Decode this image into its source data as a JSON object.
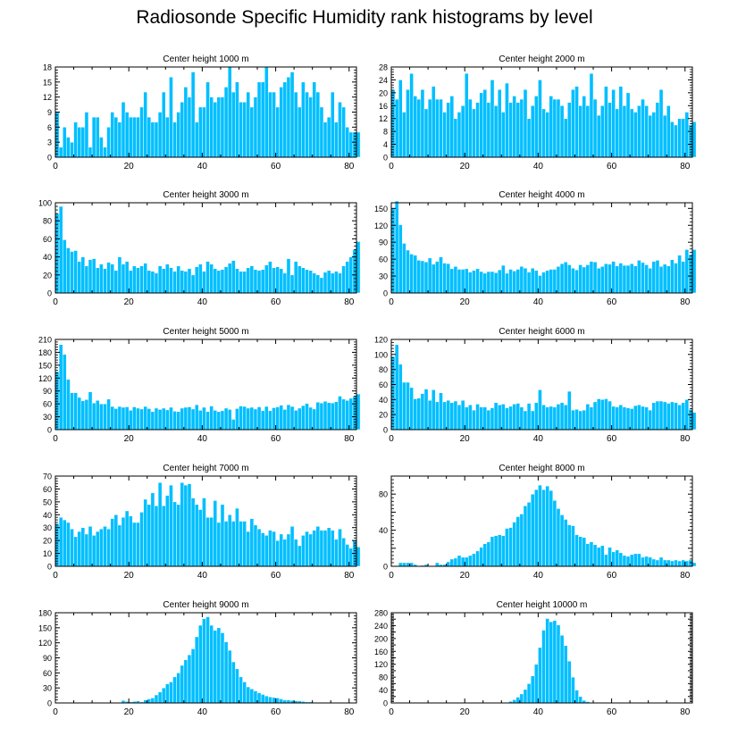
{
  "title": "Radiosonde Specific Humidity rank histograms by level",
  "colors": {
    "bar": "#00bfff",
    "bar_edge": "#ffffff",
    "axis": "#000000",
    "background": "#ffffff"
  },
  "chart_data": [
    {
      "type": "bar",
      "title": "Center height 1000 m",
      "xlabel": "",
      "ylabel": "",
      "xlim": [
        0,
        82
      ],
      "xticks": [
        0,
        20,
        40,
        60,
        80
      ],
      "ylim": [
        0,
        18
      ],
      "yticks": [
        0,
        3,
        6,
        9,
        12,
        15,
        18
      ],
      "ylabel_step": 1,
      "values": [
        9,
        2,
        6,
        4,
        3,
        7,
        6,
        6,
        9,
        2,
        8,
        8,
        4,
        2,
        6,
        9,
        8,
        7,
        11,
        9,
        8,
        8,
        8,
        10,
        13,
        8,
        7,
        7,
        9,
        13,
        8,
        16,
        7,
        9,
        11,
        14,
        12,
        17,
        7,
        10,
        10,
        15,
        12,
        11,
        12,
        12,
        14,
        18,
        13,
        15,
        11,
        11,
        13,
        10,
        12,
        15,
        15,
        18,
        13,
        13,
        10,
        14,
        15,
        16,
        17,
        13,
        10,
        15,
        13,
        12,
        15,
        13,
        10,
        7,
        8,
        13,
        7,
        11,
        10,
        6,
        5,
        5,
        5
      ]
    },
    {
      "type": "bar",
      "title": "Center height 2000 m",
      "xlabel": "",
      "ylabel": "",
      "xlim": [
        0,
        82
      ],
      "xticks": [
        0,
        20,
        40,
        60,
        80
      ],
      "ylim": [
        0,
        28
      ],
      "yticks": [
        0,
        4,
        8,
        12,
        16,
        20,
        24,
        28
      ],
      "ylabel_step": 1,
      "values": [
        21,
        18,
        24,
        14,
        21,
        26,
        19,
        18,
        21,
        15,
        18,
        22,
        18,
        18,
        14,
        17,
        19,
        12,
        14,
        16,
        26,
        18,
        15,
        17,
        20,
        21,
        17,
        24,
        16,
        21,
        14,
        23,
        17,
        19,
        17,
        18,
        21,
        12,
        16,
        19,
        24,
        15,
        14,
        19,
        18,
        18,
        16,
        12,
        17,
        21,
        22,
        16,
        19,
        16,
        26,
        18,
        13,
        16,
        22,
        17,
        21,
        15,
        22,
        16,
        20,
        15,
        14,
        16,
        18,
        16,
        13,
        14,
        17,
        21,
        13,
        16,
        11,
        10,
        12,
        12,
        14,
        10,
        11
      ]
    },
    {
      "type": "bar",
      "title": "Center height 3000 m",
      "xlabel": "",
      "ylabel": "",
      "xlim": [
        0,
        82
      ],
      "xticks": [
        0,
        20,
        40,
        60,
        80
      ],
      "ylim": [
        0,
        100
      ],
      "yticks": [
        0,
        20,
        40,
        60,
        80,
        100
      ],
      "ylabel_step": 1,
      "values": [
        88,
        96,
        59,
        50,
        46,
        47,
        35,
        40,
        30,
        37,
        38,
        28,
        32,
        27,
        34,
        32,
        25,
        40,
        32,
        35,
        25,
        30,
        28,
        30,
        33,
        25,
        24,
        22,
        30,
        27,
        32,
        28,
        24,
        30,
        25,
        24,
        27,
        20,
        29,
        32,
        24,
        35,
        32,
        27,
        25,
        26,
        29,
        33,
        36,
        27,
        24,
        24,
        28,
        30,
        26,
        25,
        26,
        31,
        35,
        28,
        29,
        27,
        22,
        38,
        20,
        35,
        30,
        28,
        26,
        25,
        22,
        20,
        17,
        23,
        25,
        22,
        24,
        22,
        30,
        35,
        40,
        48,
        57
      ]
    },
    {
      "type": "bar",
      "title": "Center height 4000 m",
      "xlabel": "",
      "ylabel": "",
      "xlim": [
        0,
        82
      ],
      "xticks": [
        0,
        20,
        40,
        60,
        80
      ],
      "ylim": [
        0,
        160
      ],
      "yticks": [
        0,
        30,
        60,
        90,
        120,
        150
      ],
      "ylabel_step": 1,
      "values": [
        150,
        163,
        121,
        88,
        76,
        69,
        67,
        58,
        57,
        55,
        62,
        51,
        56,
        64,
        53,
        52,
        43,
        47,
        42,
        42,
        43,
        37,
        40,
        43,
        38,
        35,
        38,
        38,
        36,
        41,
        49,
        35,
        42,
        39,
        42,
        47,
        44,
        37,
        44,
        40,
        31,
        37,
        40,
        42,
        42,
        47,
        52,
        55,
        50,
        44,
        41,
        50,
        46,
        50,
        56,
        55,
        44,
        47,
        52,
        51,
        56,
        48,
        53,
        49,
        49,
        52,
        48,
        58,
        54,
        50,
        44,
        56,
        58,
        47,
        51,
        48,
        59,
        53,
        67,
        56,
        77,
        68,
        77
      ]
    },
    {
      "type": "bar",
      "title": "Center height 5000 m",
      "xlabel": "",
      "ylabel": "",
      "xlim": [
        0,
        82
      ],
      "xticks": [
        0,
        20,
        40,
        60,
        80
      ],
      "ylim": [
        0,
        210
      ],
      "yticks": [
        0,
        30,
        60,
        90,
        120,
        150,
        180,
        210
      ],
      "ylabel_step": 1,
      "values": [
        135,
        198,
        175,
        117,
        86,
        86,
        75,
        67,
        70,
        88,
        62,
        68,
        60,
        60,
        71,
        54,
        49,
        54,
        52,
        53,
        45,
        53,
        50,
        48,
        54,
        49,
        42,
        50,
        47,
        50,
        46,
        52,
        43,
        42,
        50,
        52,
        53,
        48,
        58,
        45,
        52,
        42,
        55,
        45,
        42,
        44,
        50,
        47,
        24,
        49,
        55,
        54,
        50,
        52,
        48,
        53,
        44,
        54,
        44,
        51,
        53,
        57,
        47,
        58,
        54,
        45,
        50,
        56,
        61,
        52,
        48,
        64,
        62,
        66,
        63,
        62,
        65,
        78,
        71,
        68,
        73,
        78,
        83
      ]
    },
    {
      "type": "bar",
      "title": "Center height 6000 m",
      "xlabel": "",
      "ylabel": "",
      "xlim": [
        0,
        82
      ],
      "xticks": [
        0,
        20,
        40,
        60,
        80
      ],
      "ylim": [
        0,
        120
      ],
      "yticks": [
        0,
        20,
        40,
        60,
        80,
        100,
        120
      ],
      "ylabel_step": 1,
      "values": [
        97,
        113,
        87,
        63,
        63,
        56,
        41,
        42,
        48,
        54,
        39,
        53,
        37,
        49,
        37,
        39,
        36,
        38,
        33,
        39,
        30,
        33,
        26,
        34,
        30,
        30,
        26,
        29,
        36,
        33,
        34,
        29,
        31,
        34,
        35,
        30,
        25,
        35,
        25,
        36,
        53,
        33,
        30,
        31,
        30,
        34,
        36,
        33,
        51,
        26,
        27,
        25,
        26,
        34,
        30,
        37,
        41,
        40,
        41,
        38,
        31,
        30,
        33,
        30,
        29,
        28,
        32,
        33,
        31,
        30,
        26,
        36,
        38,
        38,
        37,
        35,
        37,
        36,
        33,
        36,
        40,
        27,
        23
      ]
    },
    {
      "type": "bar",
      "title": "Center height 7000 m",
      "xlabel": "",
      "ylabel": "",
      "xlim": [
        0,
        82
      ],
      "xticks": [
        0,
        20,
        40,
        60,
        80
      ],
      "ylim": [
        0,
        70
      ],
      "yticks": [
        0,
        10,
        20,
        30,
        40,
        50,
        60,
        70
      ],
      "ylabel_step": 1,
      "values": [
        33,
        38,
        36,
        34,
        29,
        23,
        27,
        30,
        25,
        31,
        24,
        27,
        29,
        31,
        29,
        37,
        40,
        32,
        38,
        43,
        39,
        34,
        34,
        42,
        52,
        48,
        57,
        47,
        65,
        47,
        55,
        63,
        50,
        48,
        65,
        63,
        64,
        53,
        48,
        44,
        53,
        38,
        38,
        51,
        34,
        48,
        35,
        40,
        35,
        45,
        35,
        35,
        27,
        37,
        32,
        29,
        26,
        24,
        28,
        27,
        20,
        25,
        21,
        25,
        31,
        21,
        16,
        24,
        27,
        25,
        28,
        31,
        28,
        28,
        30,
        28,
        21,
        29,
        22,
        17,
        14,
        20,
        15
      ]
    },
    {
      "type": "bar",
      "title": "Center height 8000 m",
      "xlabel": "",
      "ylabel": "",
      "xlim": [
        0,
        82
      ],
      "xticks": [
        0,
        20,
        40,
        60,
        80
      ],
      "ylim": [
        0,
        100
      ],
      "yticks": [
        0,
        20,
        40,
        60,
        80,
        100
      ],
      "ylabel_step": 2,
      "values": [
        0,
        0,
        4,
        4,
        4,
        4,
        2,
        0,
        1,
        2,
        0,
        0,
        4,
        2,
        2,
        5,
        8,
        9,
        12,
        10,
        10,
        12,
        14,
        17,
        21,
        25,
        27,
        33,
        34,
        35,
        34,
        42,
        43,
        49,
        55,
        58,
        67,
        71,
        80,
        85,
        90,
        85,
        89,
        84,
        73,
        64,
        57,
        52,
        46,
        45,
        35,
        33,
        32,
        25,
        27,
        24,
        21,
        23,
        13,
        21,
        16,
        18,
        15,
        12,
        11,
        13,
        14,
        14,
        10,
        11,
        10,
        8,
        7,
        10,
        7,
        7,
        6,
        7,
        6,
        7,
        6,
        7,
        4
      ]
    },
    {
      "type": "bar",
      "title": "Center height 9000 m",
      "xlabel": "",
      "ylabel": "",
      "xlim": [
        0,
        82
      ],
      "xticks": [
        0,
        20,
        40,
        60,
        80
      ],
      "ylim": [
        0,
        180
      ],
      "yticks": [
        0,
        30,
        60,
        90,
        120,
        150,
        180
      ],
      "ylabel_step": 1,
      "values": [
        0,
        0,
        0,
        0,
        0,
        0,
        0,
        0,
        0,
        0,
        0,
        0,
        0,
        0,
        0,
        0,
        0,
        0,
        5,
        3,
        2,
        3,
        4,
        2,
        6,
        8,
        10,
        16,
        22,
        30,
        38,
        42,
        52,
        60,
        75,
        86,
        96,
        108,
        132,
        155,
        168,
        172,
        155,
        145,
        150,
        140,
        122,
        105,
        82,
        68,
        52,
        42,
        32,
        28,
        24,
        20,
        17,
        14,
        12,
        11,
        10,
        8,
        6,
        6,
        5,
        4,
        4,
        3,
        2,
        2,
        1,
        1,
        1,
        1,
        0,
        0,
        0,
        0,
        0,
        0,
        0,
        0,
        0
      ]
    },
    {
      "type": "bar",
      "title": "Center height 10000 m",
      "xlabel": "",
      "ylabel": "",
      "xlim": [
        0,
        82
      ],
      "xticks": [
        0,
        20,
        40,
        60,
        80
      ],
      "ylim": [
        0,
        280
      ],
      "yticks": [
        0,
        20,
        40,
        60,
        80,
        100,
        120,
        140,
        160,
        180,
        200,
        220,
        240,
        260,
        280
      ],
      "ylabel_step": 2,
      "values": [
        0,
        0,
        0,
        0,
        0,
        0,
        0,
        0,
        0,
        0,
        0,
        0,
        0,
        0,
        0,
        0,
        0,
        0,
        0,
        0,
        0,
        0,
        0,
        0,
        0,
        0,
        0,
        0,
        0,
        0,
        0,
        2,
        5,
        10,
        18,
        28,
        42,
        60,
        84,
        120,
        172,
        226,
        262,
        252,
        256,
        242,
        210,
        178,
        130,
        80,
        40,
        20,
        8,
        4,
        2,
        1,
        0,
        0,
        0,
        0,
        0,
        0,
        0,
        0,
        0,
        0,
        0,
        0,
        0,
        0,
        0,
        0,
        0,
        0,
        0,
        0,
        0,
        0,
        0,
        0,
        0,
        0,
        0
      ]
    }
  ]
}
